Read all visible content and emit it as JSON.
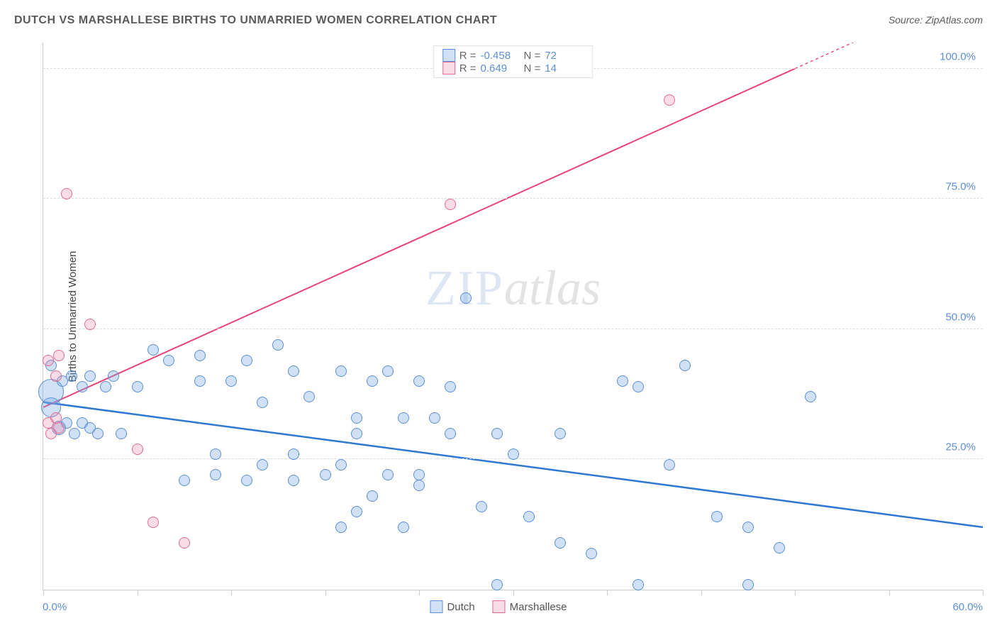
{
  "title": "DUTCH VS MARSHALLESE BIRTHS TO UNMARRIED WOMEN CORRELATION CHART",
  "source_label": "Source: ZipAtlas.com",
  "y_axis_label": "Births to Unmarried Women",
  "watermark": {
    "part1": "ZIP",
    "part2": "atlas"
  },
  "chart": {
    "type": "scatter",
    "xlim": [
      0,
      60
    ],
    "ylim": [
      0,
      105
    ],
    "x_tick_positions": [
      0,
      6,
      12,
      18,
      24,
      30,
      36,
      42,
      48,
      54,
      60
    ],
    "y_ticks": [
      {
        "v": 25,
        "label": "25.0%"
      },
      {
        "v": 50,
        "label": "50.0%"
      },
      {
        "v": 75,
        "label": "75.0%"
      },
      {
        "v": 100,
        "label": "100.0%"
      }
    ],
    "x_label_min": "0.0%",
    "x_label_max": "60.0%",
    "background_color": "#ffffff",
    "grid_color": "#dddddd",
    "axis_color": "#cccccc",
    "tick_label_color": "#5b8fd6",
    "series": [
      {
        "name": "Dutch",
        "fill_color": "rgba(120,170,230,0.35)",
        "stroke_color": "#5b8fd6",
        "trend": {
          "x1": 0,
          "y1": 36,
          "x2": 60,
          "y2": 12,
          "color": "#2e78d2",
          "width": 2.5,
          "dash": false
        },
        "correlation": {
          "r": "-0.458",
          "n": "72"
        },
        "points": [
          {
            "x": 0.5,
            "y": 35,
            "r": 14
          },
          {
            "x": 0.5,
            "y": 38,
            "r": 18
          },
          {
            "x": 0.5,
            "y": 43,
            "r": 8
          },
          {
            "x": 1,
            "y": 31,
            "r": 10
          },
          {
            "x": 1.2,
            "y": 40,
            "r": 8
          },
          {
            "x": 1.5,
            "y": 32,
            "r": 8
          },
          {
            "x": 1.8,
            "y": 41,
            "r": 8
          },
          {
            "x": 2,
            "y": 30,
            "r": 8
          },
          {
            "x": 2.5,
            "y": 32,
            "r": 8
          },
          {
            "x": 2.5,
            "y": 39,
            "r": 8
          },
          {
            "x": 3,
            "y": 31,
            "r": 8
          },
          {
            "x": 3,
            "y": 41,
            "r": 8
          },
          {
            "x": 3.5,
            "y": 30,
            "r": 8
          },
          {
            "x": 4,
            "y": 39,
            "r": 8
          },
          {
            "x": 4.5,
            "y": 41,
            "r": 8
          },
          {
            "x": 5,
            "y": 30,
            "r": 8
          },
          {
            "x": 6,
            "y": 39,
            "r": 8
          },
          {
            "x": 7,
            "y": 46,
            "r": 8
          },
          {
            "x": 8,
            "y": 44,
            "r": 8
          },
          {
            "x": 9,
            "y": 21,
            "r": 8
          },
          {
            "x": 10,
            "y": 40,
            "r": 8
          },
          {
            "x": 10,
            "y": 45,
            "r": 8
          },
          {
            "x": 11,
            "y": 22,
            "r": 8
          },
          {
            "x": 11,
            "y": 26,
            "r": 8
          },
          {
            "x": 12,
            "y": 40,
            "r": 8
          },
          {
            "x": 13,
            "y": 21,
            "r": 8
          },
          {
            "x": 13,
            "y": 44,
            "r": 8
          },
          {
            "x": 14,
            "y": 24,
            "r": 8
          },
          {
            "x": 14,
            "y": 36,
            "r": 8
          },
          {
            "x": 15,
            "y": 47,
            "r": 8
          },
          {
            "x": 16,
            "y": 21,
            "r": 8
          },
          {
            "x": 16,
            "y": 26,
            "r": 8
          },
          {
            "x": 16,
            "y": 42,
            "r": 8
          },
          {
            "x": 17,
            "y": 37,
            "r": 8
          },
          {
            "x": 18,
            "y": 22,
            "r": 8
          },
          {
            "x": 19,
            "y": 12,
            "r": 8
          },
          {
            "x": 19,
            "y": 24,
            "r": 8
          },
          {
            "x": 19,
            "y": 42,
            "r": 8
          },
          {
            "x": 20,
            "y": 15,
            "r": 8
          },
          {
            "x": 20,
            "y": 30,
            "r": 8
          },
          {
            "x": 20,
            "y": 33,
            "r": 8
          },
          {
            "x": 21,
            "y": 18,
            "r": 8
          },
          {
            "x": 21,
            "y": 40,
            "r": 8
          },
          {
            "x": 22,
            "y": 22,
            "r": 8
          },
          {
            "x": 22,
            "y": 42,
            "r": 8
          },
          {
            "x": 23,
            "y": 12,
            "r": 8
          },
          {
            "x": 23,
            "y": 33,
            "r": 8
          },
          {
            "x": 24,
            "y": 20,
            "r": 8
          },
          {
            "x": 24,
            "y": 22,
            "r": 8
          },
          {
            "x": 24,
            "y": 40,
            "r": 8
          },
          {
            "x": 25,
            "y": 33,
            "r": 8
          },
          {
            "x": 26,
            "y": 30,
            "r": 8
          },
          {
            "x": 26,
            "y": 39,
            "r": 8
          },
          {
            "x": 27,
            "y": 56,
            "r": 8
          },
          {
            "x": 28,
            "y": 16,
            "r": 8
          },
          {
            "x": 29,
            "y": 1,
            "r": 8
          },
          {
            "x": 29,
            "y": 30,
            "r": 8
          },
          {
            "x": 30,
            "y": 26,
            "r": 8
          },
          {
            "x": 31,
            "y": 14,
            "r": 8
          },
          {
            "x": 33,
            "y": 9,
            "r": 8
          },
          {
            "x": 33,
            "y": 30,
            "r": 8
          },
          {
            "x": 35,
            "y": 7,
            "r": 8
          },
          {
            "x": 37,
            "y": 40,
            "r": 8
          },
          {
            "x": 38,
            "y": 1,
            "r": 8
          },
          {
            "x": 38,
            "y": 39,
            "r": 8
          },
          {
            "x": 40,
            "y": 24,
            "r": 8
          },
          {
            "x": 41,
            "y": 43,
            "r": 8
          },
          {
            "x": 43,
            "y": 14,
            "r": 8
          },
          {
            "x": 45,
            "y": 1,
            "r": 8
          },
          {
            "x": 45,
            "y": 12,
            "r": 8
          },
          {
            "x": 47,
            "y": 8,
            "r": 8
          },
          {
            "x": 49,
            "y": 37,
            "r": 8
          }
        ]
      },
      {
        "name": "Marshallese",
        "fill_color": "rgba(235,130,160,0.28)",
        "stroke_color": "#e06a93",
        "trend": {
          "x1": 0,
          "y1": 35,
          "x2": 48,
          "y2": 100,
          "color": "#e8447a",
          "width": 2,
          "dash": false,
          "extend_dash_to": 60
        },
        "correlation": {
          "r": "0.649",
          "n": "14"
        },
        "points": [
          {
            "x": 0.3,
            "y": 32,
            "r": 8
          },
          {
            "x": 0.3,
            "y": 44,
            "r": 8
          },
          {
            "x": 0.5,
            "y": 30,
            "r": 8
          },
          {
            "x": 0.8,
            "y": 33,
            "r": 8
          },
          {
            "x": 0.8,
            "y": 41,
            "r": 8
          },
          {
            "x": 1,
            "y": 45,
            "r": 8
          },
          {
            "x": 1,
            "y": 31,
            "r": 8
          },
          {
            "x": 1.5,
            "y": 76,
            "r": 8
          },
          {
            "x": 3,
            "y": 51,
            "r": 8
          },
          {
            "x": 6,
            "y": 27,
            "r": 8
          },
          {
            "x": 7,
            "y": 13,
            "r": 8
          },
          {
            "x": 9,
            "y": 9,
            "r": 8
          },
          {
            "x": 26,
            "y": 74,
            "r": 8
          },
          {
            "x": 40,
            "y": 94,
            "r": 8
          }
        ]
      }
    ]
  },
  "legend_top_labels": {
    "r": "R =",
    "n": "N ="
  },
  "legend_bottom": [
    {
      "name": "Dutch",
      "fill": "rgba(120,170,230,0.35)",
      "stroke": "#5b8fd6"
    },
    {
      "name": "Marshallese",
      "fill": "rgba(235,130,160,0.28)",
      "stroke": "#e06a93"
    }
  ]
}
